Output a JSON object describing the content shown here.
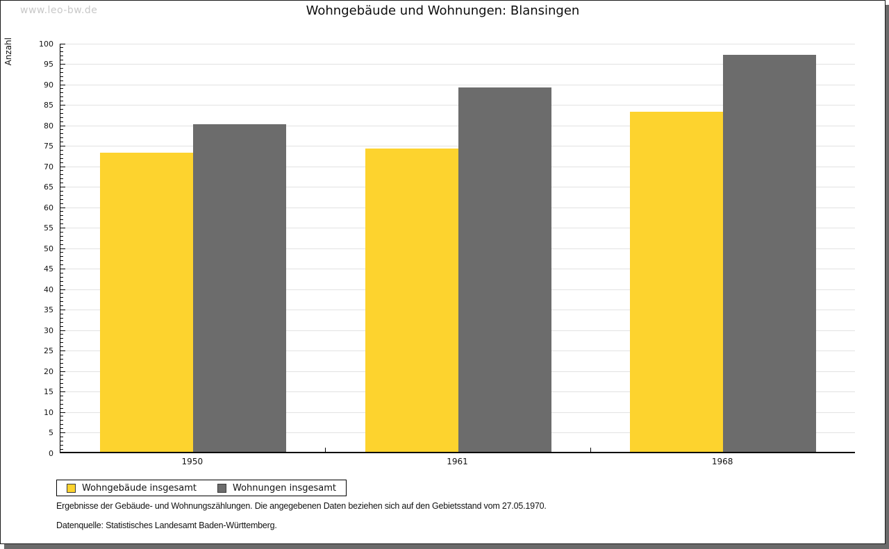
{
  "watermark": "www.leo-bw.de",
  "chart_data": {
    "type": "bar",
    "title": "Wohngebäude und Wohnungen: Blansingen",
    "ylabel": "Anzahl",
    "xlabel": "",
    "ylim": [
      0,
      100
    ],
    "ytick_step": 5,
    "ytick_minor_step": 1,
    "grid": true,
    "legend_position": "bottom-left",
    "categories": [
      "1950",
      "1961",
      "1968"
    ],
    "series": [
      {
        "name": "Wohngebäude insgesamt",
        "color": "#FDD32E",
        "values": [
          73,
          74,
          83
        ]
      },
      {
        "name": "Wohnungen insgesamt",
        "color": "#6C6C6C",
        "values": [
          80,
          89,
          97
        ]
      }
    ],
    "colors": {
      "gridline": "#e2e2e2",
      "axis": "#000000"
    }
  },
  "footnotes": {
    "line1": "Ergebnisse der Gebäude- und Wohnungszählungen. Die angegebenen Daten beziehen sich auf den Gebietsstand vom 27.05.1970.",
    "line2": "Datenquelle: Statistisches Landesamt Baden-Württemberg."
  }
}
